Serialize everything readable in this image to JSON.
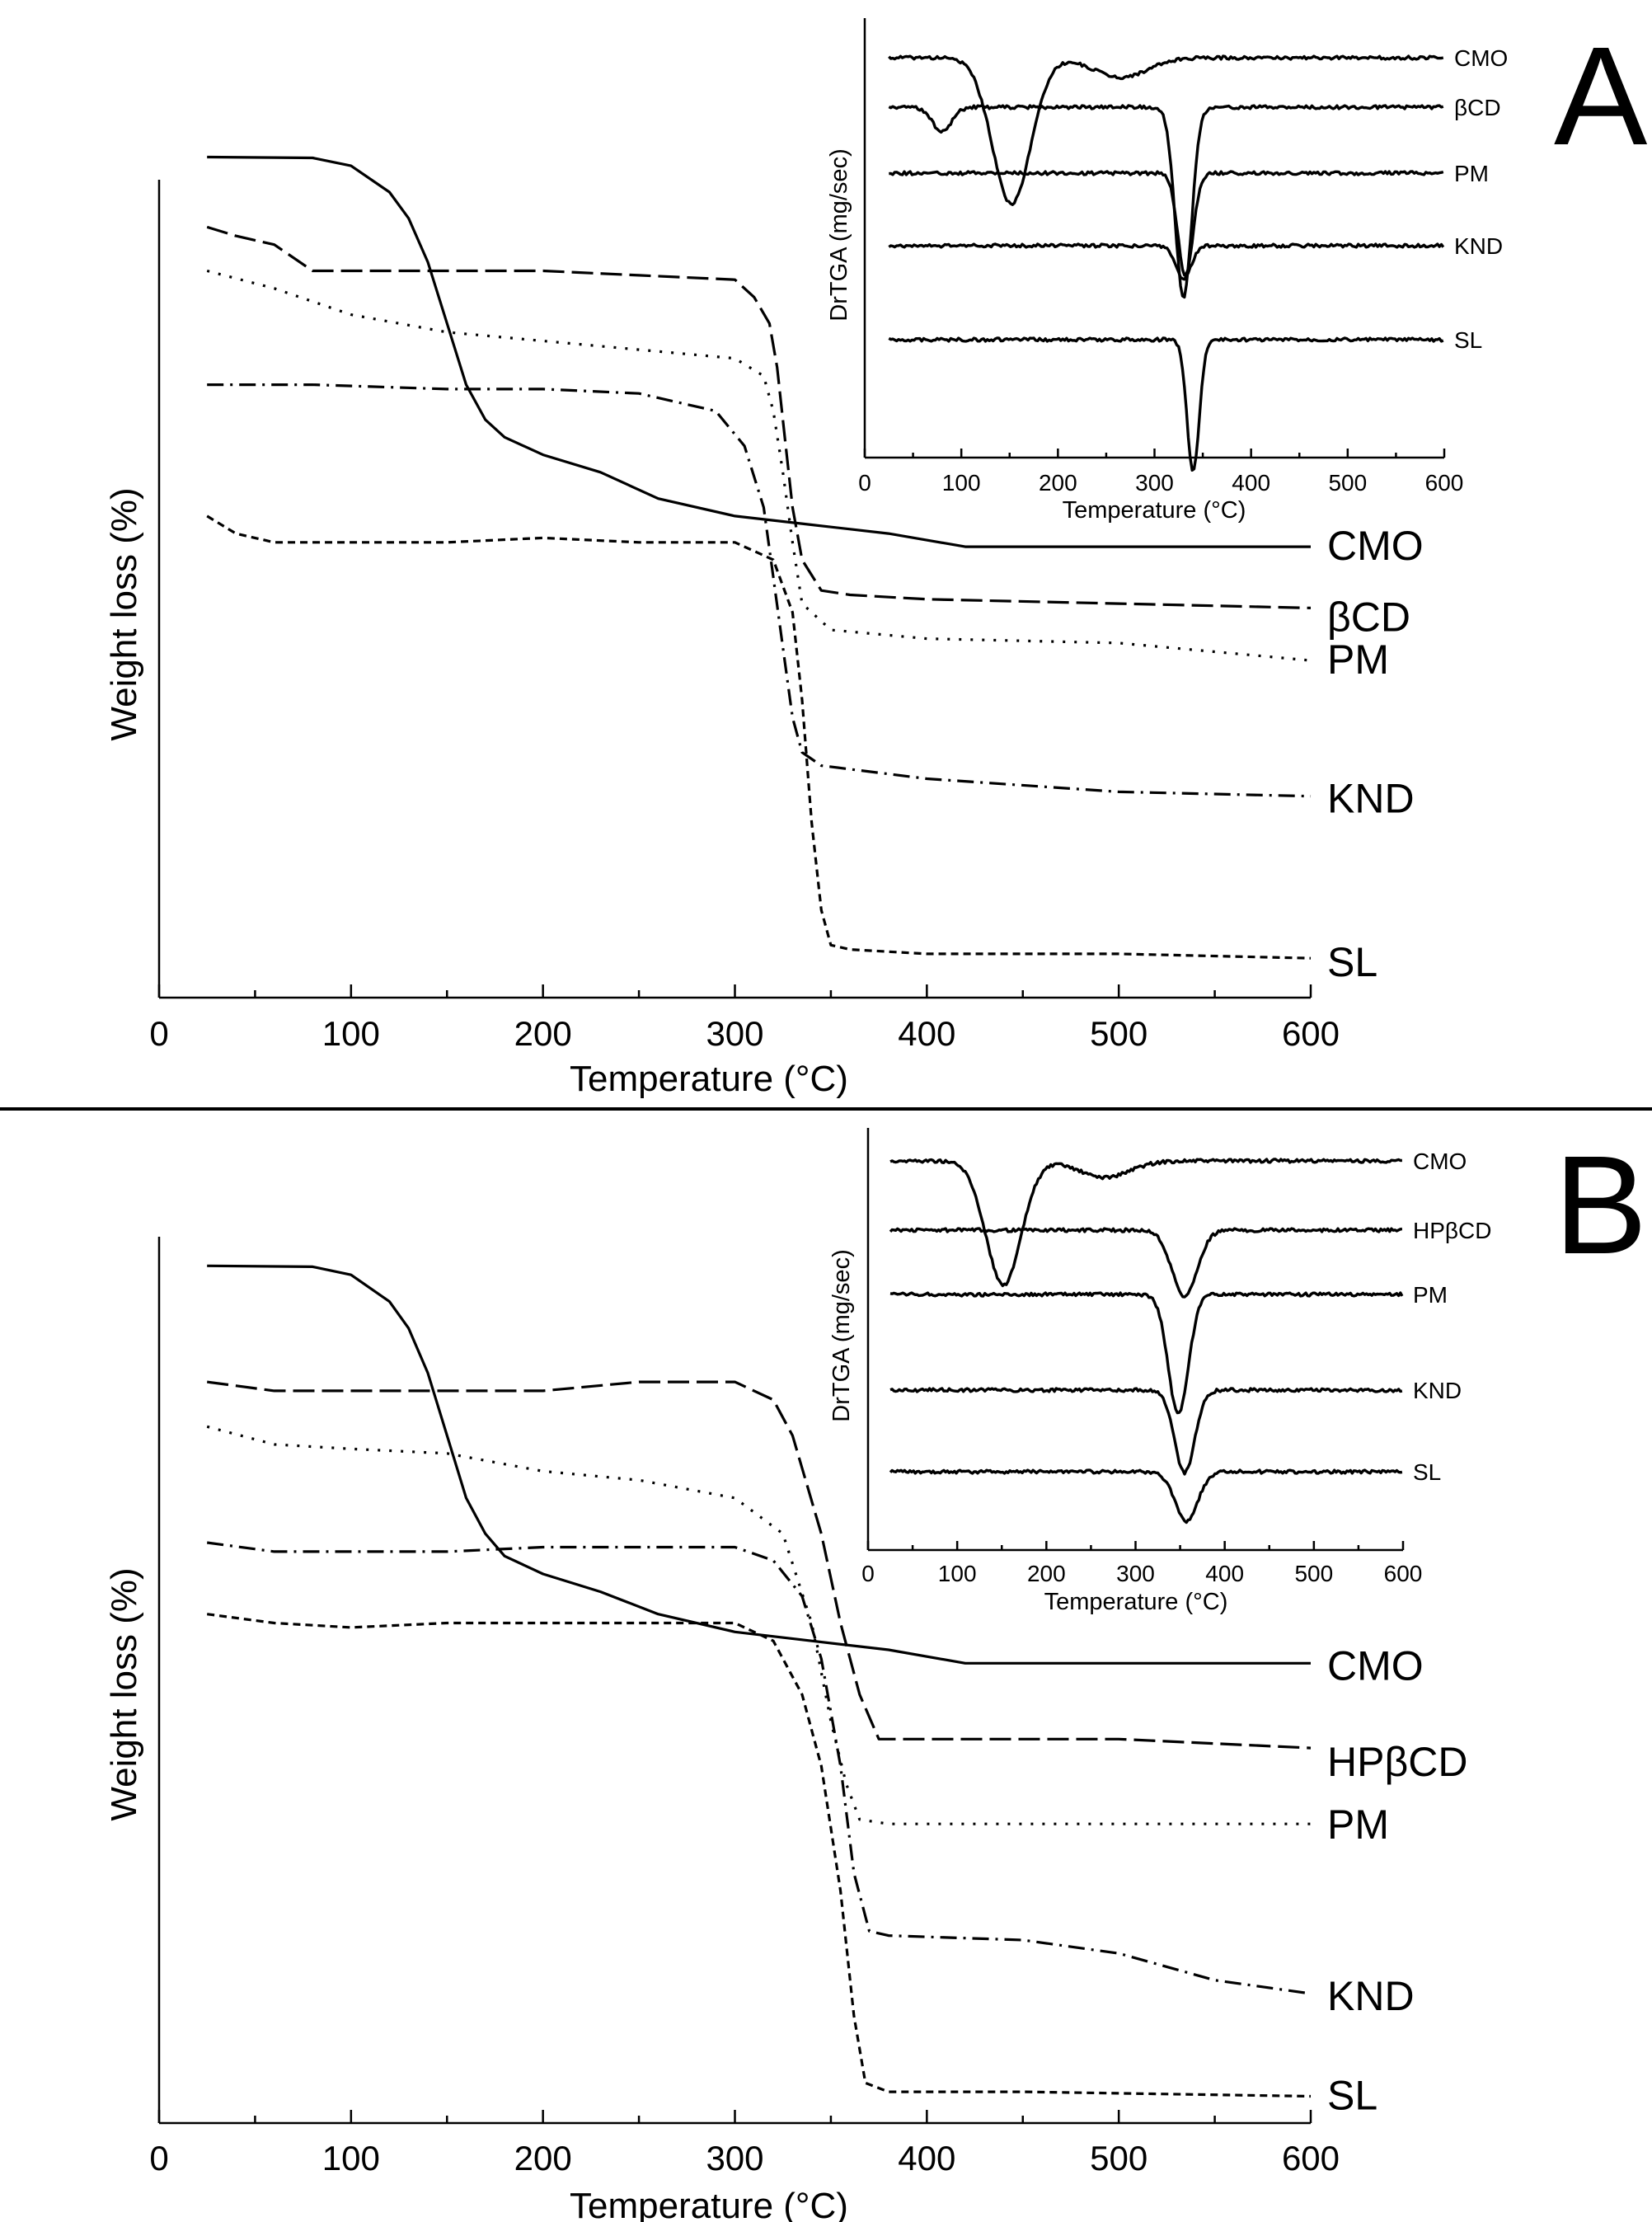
{
  "figure": {
    "panels": [
      {
        "label": "A"
      },
      {
        "label": "B"
      }
    ]
  },
  "chart_data": [
    {
      "id": "A-main",
      "type": "line",
      "panel": "A",
      "title": "",
      "xlabel": "Temperature (°C)",
      "ylabel": "Weight loss (%)",
      "xlim": [
        0,
        600
      ],
      "ylim": [
        0,
        100
      ],
      "xticks": [
        "0",
        "100",
        "200",
        "300",
        "400",
        "500",
        "600"
      ],
      "legend_position": "curve-end labels (right)",
      "series": [
        {
          "name": "CMO",
          "style": "solid",
          "x": [
            25,
            80,
            100,
            120,
            130,
            140,
            150,
            160,
            170,
            180,
            200,
            230,
            260,
            300,
            340,
            380,
            420,
            500,
            600
          ],
          "y": [
            96,
            95.9,
            95,
            92,
            89,
            84,
            77,
            70,
            66,
            64,
            62,
            60,
            57,
            55,
            54,
            53,
            51.5,
            51.5,
            51.5
          ]
        },
        {
          "name": "βCD",
          "style": "dashed",
          "x": [
            25,
            40,
            60,
            80,
            100,
            150,
            200,
            250,
            300,
            310,
            318,
            322,
            326,
            330,
            335,
            345,
            360,
            400,
            500,
            600
          ],
          "y": [
            88,
            87,
            86,
            83,
            83,
            83,
            83,
            82.5,
            82,
            80,
            77,
            72,
            64,
            56,
            50,
            46.5,
            46,
            45.5,
            45,
            44.5
          ]
        },
        {
          "name": "PM",
          "style": "dotted",
          "x": [
            25,
            60,
            100,
            150,
            200,
            250,
            300,
            315,
            320,
            325,
            330,
            335,
            350,
            400,
            500,
            600
          ],
          "y": [
            83,
            81,
            78,
            76,
            75,
            74,
            73,
            71,
            67,
            60,
            52,
            45,
            42,
            41,
            40.5,
            38.5
          ]
        },
        {
          "name": "KND",
          "style": "dash-dot",
          "x": [
            25,
            80,
            150,
            200,
            250,
            290,
            305,
            315,
            320,
            325,
            330,
            335,
            345,
            400,
            500,
            600
          ],
          "y": [
            70,
            70,
            69.5,
            69.5,
            69,
            67,
            63,
            56,
            48,
            40,
            32,
            28,
            26.5,
            25,
            23.5,
            23
          ]
        },
        {
          "name": "SL",
          "style": "short-dash",
          "x": [
            25,
            40,
            60,
            100,
            150,
            200,
            250,
            300,
            320,
            330,
            335,
            340,
            345,
            350,
            360,
            400,
            500,
            600
          ],
          "y": [
            55,
            53,
            52,
            52,
            52,
            52.5,
            52,
            52,
            50,
            44,
            34,
            20,
            10,
            6,
            5.5,
            5,
            5,
            4.5
          ]
        }
      ]
    },
    {
      "id": "A-inset",
      "type": "line",
      "panel": "A",
      "title": "",
      "xlabel": "Temperature (°C)",
      "ylabel": "DrTGA (mg/sec)",
      "xlim": [
        0,
        600
      ],
      "xticks": [
        "0",
        "100",
        "200",
        "300",
        "400",
        "500",
        "600"
      ],
      "legend_position": "curve-end labels (right)",
      "series": [
        {
          "name": "CMO",
          "peaks": [
            {
              "x": 152,
              "depth": 1.5,
              "width": 28
            },
            {
              "x": 265,
              "depth": 0.2,
              "width": 40
            }
          ]
        },
        {
          "name": "βCD",
          "peaks": [
            {
              "x": 330,
              "depth": 1.95,
              "width": 12
            },
            {
              "x": 80,
              "depth": 0.25,
              "width": 14
            }
          ]
        },
        {
          "name": "PM",
          "peaks": [
            {
              "x": 332,
              "depth": 1.05,
              "width": 11
            }
          ]
        },
        {
          "name": "KND",
          "peaks": [
            {
              "x": 330,
              "depth": 0.35,
              "width": 11
            }
          ]
        },
        {
          "name": "SL",
          "peaks": [
            {
              "x": 340,
              "depth": 1.35,
              "width": 9
            }
          ]
        }
      ]
    },
    {
      "id": "B-main",
      "type": "line",
      "panel": "B",
      "title": "",
      "xlabel": "Temperature (°C)",
      "ylabel": "Weight loss (%)",
      "xlim": [
        0,
        600
      ],
      "ylim": [
        0,
        100
      ],
      "xticks": [
        "0",
        "100",
        "200",
        "300",
        "400",
        "500",
        "600"
      ],
      "legend_position": "curve-end labels (right)",
      "series": [
        {
          "name": "CMO",
          "style": "solid",
          "x": [
            25,
            80,
            100,
            120,
            130,
            140,
            150,
            160,
            170,
            180,
            200,
            230,
            260,
            300,
            340,
            380,
            420,
            500,
            600
          ],
          "y": [
            96,
            95.9,
            95,
            92,
            89,
            84,
            77,
            70,
            66,
            63.5,
            61.5,
            59.5,
            57,
            55,
            54,
            53,
            51.5,
            51.5,
            51.5
          ]
        },
        {
          "name": "HPβCD",
          "style": "dashed",
          "x": [
            25,
            60,
            100,
            150,
            200,
            250,
            300,
            320,
            330,
            345,
            355,
            365,
            375,
            400,
            450,
            500,
            550,
            600
          ],
          "y": [
            83,
            82,
            82,
            82,
            82,
            83,
            83,
            81,
            77,
            66,
            56,
            48,
            43,
            43,
            43,
            43,
            42.5,
            42
          ]
        },
        {
          "name": "PM",
          "style": "dotted",
          "x": [
            25,
            60,
            100,
            150,
            200,
            250,
            300,
            325,
            340,
            350,
            358,
            365,
            380,
            450,
            600
          ],
          "y": [
            78,
            76,
            75.5,
            75,
            73,
            72,
            70,
            66,
            56,
            45,
            38,
            34,
            33.5,
            33.5,
            33.5
          ]
        },
        {
          "name": "KND",
          "style": "dash-dot",
          "x": [
            25,
            60,
            100,
            150,
            200,
            250,
            300,
            320,
            335,
            345,
            355,
            362,
            370,
            380,
            450,
            500,
            550,
            600
          ],
          "y": [
            65,
            64,
            64,
            64,
            64.5,
            64.5,
            64.5,
            63,
            59,
            52,
            40,
            28,
            21.5,
            21,
            20.5,
            19,
            16,
            14.5
          ]
        },
        {
          "name": "SL",
          "style": "short-dash",
          "x": [
            25,
            60,
            100,
            150,
            200,
            250,
            300,
            320,
            335,
            345,
            355,
            362,
            368,
            380,
            450,
            600
          ],
          "y": [
            57,
            56,
            55.5,
            56,
            56,
            56,
            56,
            54,
            48,
            40,
            26,
            12,
            4.5,
            3.5,
            3.5,
            3
          ]
        }
      ]
    },
    {
      "id": "B-inset",
      "type": "line",
      "panel": "B",
      "title": "",
      "xlabel": "Temperature (°C)",
      "ylabel": "DrTGA (mg/sec)",
      "xlim": [
        0,
        600
      ],
      "xticks": [
        "0",
        "100",
        "200",
        "300",
        "400",
        "500",
        "600"
      ],
      "legend_position": "curve-end labels (right)",
      "series": [
        {
          "name": "CMO",
          "peaks": [
            {
              "x": 152,
              "depth": 1.5,
              "width": 28
            },
            {
              "x": 265,
              "depth": 0.2,
              "width": 40
            }
          ]
        },
        {
          "name": "HPβCD",
          "peaks": [
            {
              "x": 355,
              "depth": 0.8,
              "width": 20
            }
          ]
        },
        {
          "name": "PM",
          "peaks": [
            {
              "x": 348,
              "depth": 1.45,
              "width": 16
            }
          ]
        },
        {
          "name": "KND",
          "peaks": [
            {
              "x": 355,
              "depth": 1.0,
              "width": 16
            }
          ]
        },
        {
          "name": "SL",
          "peaks": [
            {
              "x": 357,
              "depth": 0.6,
              "width": 18
            }
          ]
        }
      ]
    }
  ]
}
